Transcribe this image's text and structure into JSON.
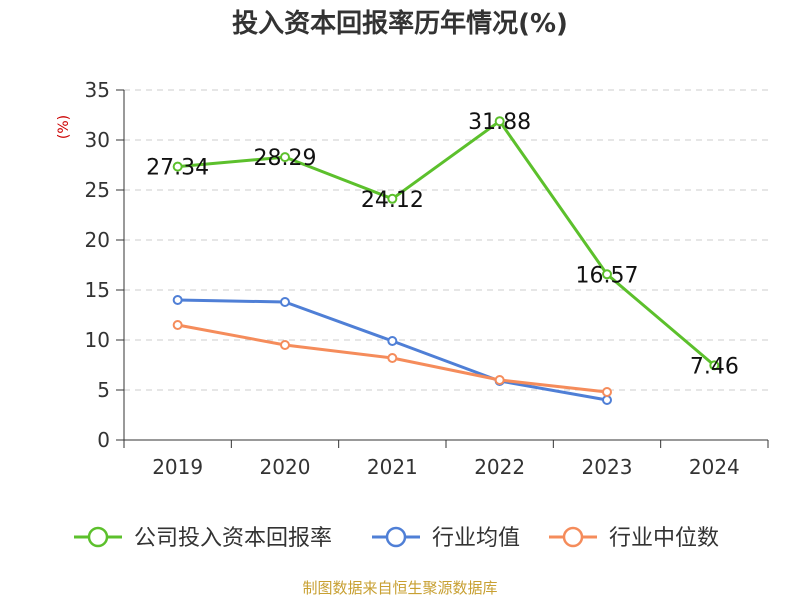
{
  "chart_data": {
    "type": "line",
    "title": "投入资本回报率历年情况(%)",
    "unit_label": "(%)",
    "categories": [
      "2019",
      "2020",
      "2021",
      "2022",
      "2023",
      "2024"
    ],
    "ylim": [
      0,
      35
    ],
    "yticks": [
      0,
      5,
      10,
      15,
      20,
      25,
      30,
      35
    ],
    "grid": true,
    "legend_position": "bottom",
    "series": [
      {
        "name": "公司投入资本回报率",
        "color": "#5cc02c",
        "values": [
          27.34,
          28.29,
          24.12,
          31.88,
          16.57,
          7.46
        ],
        "labels": [
          "27.34",
          "28.29",
          "24.12",
          "31.88",
          "16.57",
          "7.46"
        ]
      },
      {
        "name": "行业均值",
        "color": "#4f7fd6",
        "values": [
          14.0,
          13.8,
          9.9,
          5.9,
          4.0,
          null
        ]
      },
      {
        "name": "行业中位数",
        "color": "#f58c5b",
        "values": [
          11.5,
          9.5,
          8.2,
          6.0,
          4.8,
          null
        ]
      }
    ]
  },
  "source": "制图数据来自恒生聚源数据库"
}
